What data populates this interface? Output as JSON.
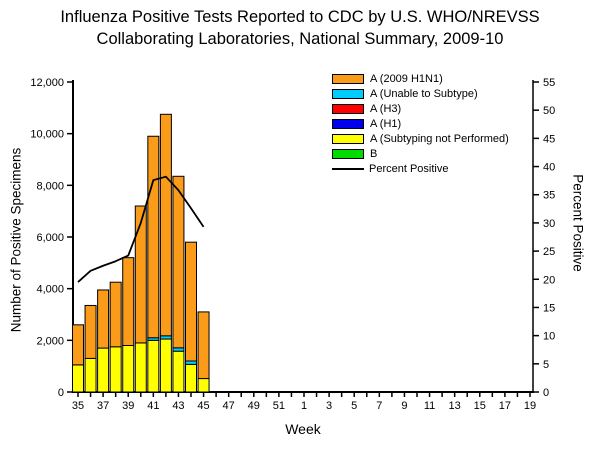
{
  "title": {
    "line1": "Influenza Positive Tests Reported to CDC by U.S. WHO/NREVSS",
    "line2": "Collaborating Laboratories, National Summary, 2009-10"
  },
  "chart_data": {
    "type": "bar",
    "subtype": "stacked-bars-with-line-overlay",
    "x_axis": {
      "label": "Week",
      "weeks": [
        "35",
        "36",
        "37",
        "38",
        "39",
        "40",
        "41",
        "42",
        "43",
        "44",
        "45",
        "46",
        "47",
        "48",
        "49",
        "50",
        "51",
        "52",
        "1",
        "2",
        "3",
        "4",
        "5",
        "6",
        "7",
        "8",
        "9",
        "10",
        "11",
        "12",
        "13",
        "14",
        "15",
        "16",
        "17",
        "18",
        "19"
      ],
      "label_every": 2
    },
    "left_axis": {
      "label": "Number of Positive Specimens",
      "tick_labels": [
        "0",
        "2,000",
        "4,000",
        "6,000",
        "8,000",
        "10,000",
        "12,000"
      ],
      "min": 0,
      "max": 12000,
      "tick_step": 2000
    },
    "right_axis": {
      "label": "Percent Positive",
      "tick_labels": [
        "0",
        "5",
        "10",
        "15",
        "20",
        "25",
        "30",
        "35",
        "40",
        "45",
        "50",
        "55"
      ],
      "min": 0,
      "max": 55,
      "tick_step": 5
    },
    "bar_weeks": [
      "35",
      "36",
      "37",
      "38",
      "39",
      "40",
      "41",
      "42",
      "43",
      "44",
      "45"
    ],
    "series": [
      {
        "name": "A (2009 H1N1)",
        "color": "#FA9C1A",
        "values": [
          1550,
          2050,
          2250,
          2500,
          3400,
          5300,
          7800,
          8575,
          6640,
          4600,
          2580
        ]
      },
      {
        "name": "A (Unable to Subtype)",
        "color": "#00CCFF",
        "values": [
          0,
          0,
          0,
          0,
          0,
          0,
          100,
          125,
          130,
          130,
          0
        ]
      },
      {
        "name": "A (H3)",
        "color": "#FF0000",
        "values": [
          0,
          0,
          0,
          0,
          0,
          0,
          0,
          0,
          0,
          0,
          0
        ]
      },
      {
        "name": "A (H1)",
        "color": "#0000EE",
        "values": [
          0,
          0,
          0,
          0,
          0,
          0,
          0,
          0,
          0,
          0,
          0
        ]
      },
      {
        "name": "A (Subtyping not Performed)",
        "color": "#FFFF00",
        "values": [
          1050,
          1300,
          1700,
          1750,
          1800,
          1900,
          2000,
          2050,
          1580,
          1070,
          520
        ]
      },
      {
        "name": "B",
        "color": "#00DB00",
        "values": [
          0,
          0,
          0,
          0,
          0,
          0,
          0,
          0,
          0,
          0,
          0
        ]
      }
    ],
    "bar_totals": [
      2600,
      3350,
      3950,
      4250,
      5200,
      7200,
      9900,
      10750,
      8350,
      5800,
      3100
    ],
    "line_series": {
      "name": "Percent Positive",
      "color": "#000000",
      "values": [
        19.5,
        21.5,
        22.4,
        23.2,
        24.2,
        30.0,
        37.6,
        38.2,
        35.8,
        32.6,
        29.3
      ]
    },
    "layout": {
      "grid": false,
      "legend_position": "upper-right-inside"
    }
  },
  "legend": {
    "items": [
      {
        "label": "A (2009 H1N1)",
        "color": "#FA9C1A",
        "type": "box"
      },
      {
        "label": "A (Unable to Subtype)",
        "color": "#00CCFF",
        "type": "box"
      },
      {
        "label": "A (H3)",
        "color": "#FF0000",
        "type": "box"
      },
      {
        "label": "A (H1)",
        "color": "#0000EE",
        "type": "box"
      },
      {
        "label": "A (Subtyping not Performed)",
        "color": "#FFFF00",
        "type": "box"
      },
      {
        "label": "B",
        "color": "#00DB00",
        "type": "box"
      },
      {
        "label": "Percent Positive",
        "color": "#000000",
        "type": "line"
      }
    ]
  }
}
